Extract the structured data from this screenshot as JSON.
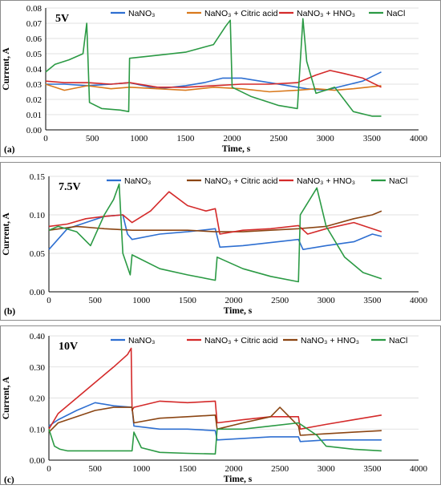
{
  "chart_data": [
    {
      "type": "line",
      "title": "5V",
      "panel_label": "(a)",
      "xlabel": "Time, s",
      "ylabel": "Current, A",
      "xlim": [
        0,
        4000
      ],
      "ylim": [
        0,
        0.08
      ],
      "xticks": [
        "0",
        "500",
        "1000",
        "1500",
        "2000",
        "2500",
        "3000",
        "3500",
        "4000"
      ],
      "yticks": [
        "0.00",
        "0.01",
        "0.02",
        "0.03",
        "0.04",
        "0.05",
        "0.06",
        "0.07",
        "0.08"
      ],
      "legend_position": "top",
      "series": [
        {
          "name": "NaNO₃",
          "color": "#2e6fd1",
          "x": [
            0,
            200,
            450,
            700,
            900,
            1200,
            1500,
            1700,
            1900,
            2100,
            2400,
            2700,
            2800,
            3000,
            3200,
            3400,
            3600
          ],
          "y": [
            0.03,
            0.03,
            0.029,
            0.03,
            0.031,
            0.027,
            0.029,
            0.031,
            0.034,
            0.034,
            0.031,
            0.028,
            0.027,
            0.026,
            0.029,
            0.032,
            0.038
          ]
        },
        {
          "name": "NaNO₃ + Citric acid",
          "color": "#d9791c",
          "x": [
            0,
            200,
            450,
            700,
            900,
            1200,
            1500,
            1800,
            2100,
            2400,
            2700,
            2900,
            3100,
            3300,
            3600
          ],
          "y": [
            0.03,
            0.026,
            0.029,
            0.027,
            0.028,
            0.027,
            0.026,
            0.028,
            0.027,
            0.025,
            0.026,
            0.027,
            0.026,
            0.027,
            0.029
          ]
        },
        {
          "name": "NaNO₃ + HNO₃",
          "color": "#d42a2a",
          "x": [
            0,
            200,
            450,
            700,
            900,
            1200,
            1500,
            1800,
            2100,
            2400,
            2700,
            2900,
            3050,
            3200,
            3400,
            3600
          ],
          "y": [
            0.032,
            0.031,
            0.031,
            0.03,
            0.031,
            0.028,
            0.028,
            0.029,
            0.03,
            0.03,
            0.031,
            0.036,
            0.039,
            0.037,
            0.034,
            0.028
          ]
        },
        {
          "name": "NaCl",
          "color": "#2b9a44",
          "x": [
            0,
            100,
            250,
            400,
            440,
            470,
            600,
            800,
            890,
            900,
            1200,
            1500,
            1800,
            1930,
            1980,
            2000,
            2200,
            2500,
            2700,
            2760,
            2800,
            2900,
            3000,
            3100,
            3300,
            3500,
            3600
          ],
          "y": [
            0.038,
            0.043,
            0.046,
            0.05,
            0.07,
            0.018,
            0.014,
            0.013,
            0.012,
            0.047,
            0.049,
            0.051,
            0.056,
            0.068,
            0.072,
            0.028,
            0.022,
            0.016,
            0.014,
            0.073,
            0.045,
            0.024,
            0.026,
            0.028,
            0.012,
            0.009,
            0.009
          ]
        }
      ]
    },
    {
      "type": "line",
      "title": "7.5V",
      "panel_label": "(b)",
      "xlabel": "Time, s",
      "ylabel": "Current, A",
      "xlim": [
        0,
        4000
      ],
      "ylim": [
        0,
        0.15
      ],
      "xticks": [
        "0",
        "500",
        "1000",
        "1500",
        "2000",
        "2500",
        "3000",
        "3500",
        "4000"
      ],
      "yticks": [
        "0.00",
        "0.05",
        "0.10",
        "0.15"
      ],
      "legend_position": "top",
      "series": [
        {
          "name": "NaNO₃",
          "color": "#2e6fd1",
          "x": [
            0,
            200,
            400,
            600,
            800,
            850,
            900,
            1200,
            1500,
            1800,
            1850,
            2100,
            2400,
            2700,
            2750,
            3000,
            3300,
            3500,
            3600
          ],
          "y": [
            0.055,
            0.082,
            0.09,
            0.098,
            0.1,
            0.075,
            0.068,
            0.075,
            0.078,
            0.082,
            0.058,
            0.06,
            0.064,
            0.068,
            0.055,
            0.06,
            0.065,
            0.075,
            0.072
          ]
        },
        {
          "name": "NaNO₃ + Citric acid",
          "color": "#8b4513",
          "x": [
            0,
            300,
            600,
            900,
            1200,
            1500,
            1800,
            2100,
            2400,
            2700,
            3000,
            3300,
            3500,
            3600
          ],
          "y": [
            0.08,
            0.085,
            0.082,
            0.08,
            0.08,
            0.08,
            0.078,
            0.078,
            0.08,
            0.082,
            0.085,
            0.095,
            0.1,
            0.105
          ]
        },
        {
          "name": "NaNO₃ + HNO₃",
          "color": "#d42a2a",
          "x": [
            0,
            200,
            400,
            600,
            800,
            900,
            1100,
            1300,
            1500,
            1700,
            1800,
            1850,
            2100,
            2400,
            2700,
            2800,
            3000,
            3300,
            3600
          ],
          "y": [
            0.085,
            0.088,
            0.095,
            0.098,
            0.1,
            0.09,
            0.105,
            0.13,
            0.112,
            0.105,
            0.108,
            0.075,
            0.08,
            0.082,
            0.086,
            0.075,
            0.082,
            0.09,
            0.078
          ]
        },
        {
          "name": "NaCl",
          "color": "#2b9a44",
          "x": [
            0,
            100,
            300,
            450,
            600,
            700,
            760,
            800,
            880,
            900,
            1200,
            1500,
            1800,
            1820,
            2100,
            2400,
            2700,
            2720,
            2900,
            3000,
            3200,
            3400,
            3600
          ],
          "y": [
            0.08,
            0.085,
            0.078,
            0.06,
            0.1,
            0.12,
            0.14,
            0.05,
            0.022,
            0.048,
            0.03,
            0.022,
            0.015,
            0.045,
            0.03,
            0.02,
            0.013,
            0.1,
            0.135,
            0.085,
            0.045,
            0.025,
            0.017
          ]
        }
      ]
    },
    {
      "type": "line",
      "title": "10V",
      "panel_label": "(c)",
      "xlabel": "Time, s",
      "ylabel": "Current, A",
      "xlim": [
        0,
        4000
      ],
      "ylim": [
        0,
        0.4
      ],
      "xticks": [
        "0",
        "500",
        "1000",
        "1500",
        "2000",
        "2500",
        "3000",
        "3500",
        "4000"
      ],
      "yticks": [
        "0.00",
        "0.10",
        "0.20",
        "0.30",
        "0.40"
      ],
      "legend_position": "top",
      "series": [
        {
          "name": "NaNO₃",
          "color": "#2e6fd1",
          "x": [
            0,
            100,
            300,
            500,
            700,
            900,
            920,
            1200,
            1500,
            1800,
            1820,
            2100,
            2400,
            2700,
            2720,
            3000,
            3300,
            3600
          ],
          "y": [
            0.11,
            0.13,
            0.16,
            0.185,
            0.175,
            0.17,
            0.11,
            0.1,
            0.1,
            0.095,
            0.065,
            0.07,
            0.075,
            0.075,
            0.06,
            0.065,
            0.065,
            0.065
          ]
        },
        {
          "name": "NaNO₃ + Citric acid",
          "color": "#d42a2a",
          "x": [
            0,
            100,
            300,
            500,
            700,
            850,
            890,
            900,
            920,
            1200,
            1500,
            1800,
            1820,
            2100,
            2400,
            2700,
            2720,
            3000,
            3300,
            3600
          ],
          "y": [
            0.1,
            0.15,
            0.2,
            0.25,
            0.3,
            0.34,
            0.36,
            0.16,
            0.17,
            0.19,
            0.185,
            0.19,
            0.12,
            0.13,
            0.14,
            0.14,
            0.1,
            0.115,
            0.13,
            0.145
          ]
        },
        {
          "name": "NaNO₃ + HNO₃",
          "color": "#8b4513",
          "x": [
            0,
            100,
            300,
            500,
            700,
            900,
            920,
            1200,
            1500,
            1800,
            1820,
            2100,
            2400,
            2500,
            2700,
            2720,
            3000,
            3300,
            3600
          ],
          "y": [
            0.09,
            0.12,
            0.14,
            0.16,
            0.17,
            0.17,
            0.12,
            0.135,
            0.14,
            0.145,
            0.1,
            0.12,
            0.14,
            0.17,
            0.11,
            0.08,
            0.085,
            0.09,
            0.095
          ]
        },
        {
          "name": "NaCl",
          "color": "#2b9a44",
          "x": [
            0,
            60,
            120,
            200,
            500,
            800,
            900,
            920,
            1000,
            1200,
            1500,
            1800,
            1820,
            2100,
            2400,
            2700,
            2900,
            3000,
            3300,
            3600
          ],
          "y": [
            0.1,
            0.045,
            0.035,
            0.03,
            0.03,
            0.03,
            0.03,
            0.09,
            0.04,
            0.025,
            0.022,
            0.02,
            0.1,
            0.1,
            0.11,
            0.12,
            0.08,
            0.045,
            0.035,
            0.03
          ]
        }
      ]
    }
  ]
}
